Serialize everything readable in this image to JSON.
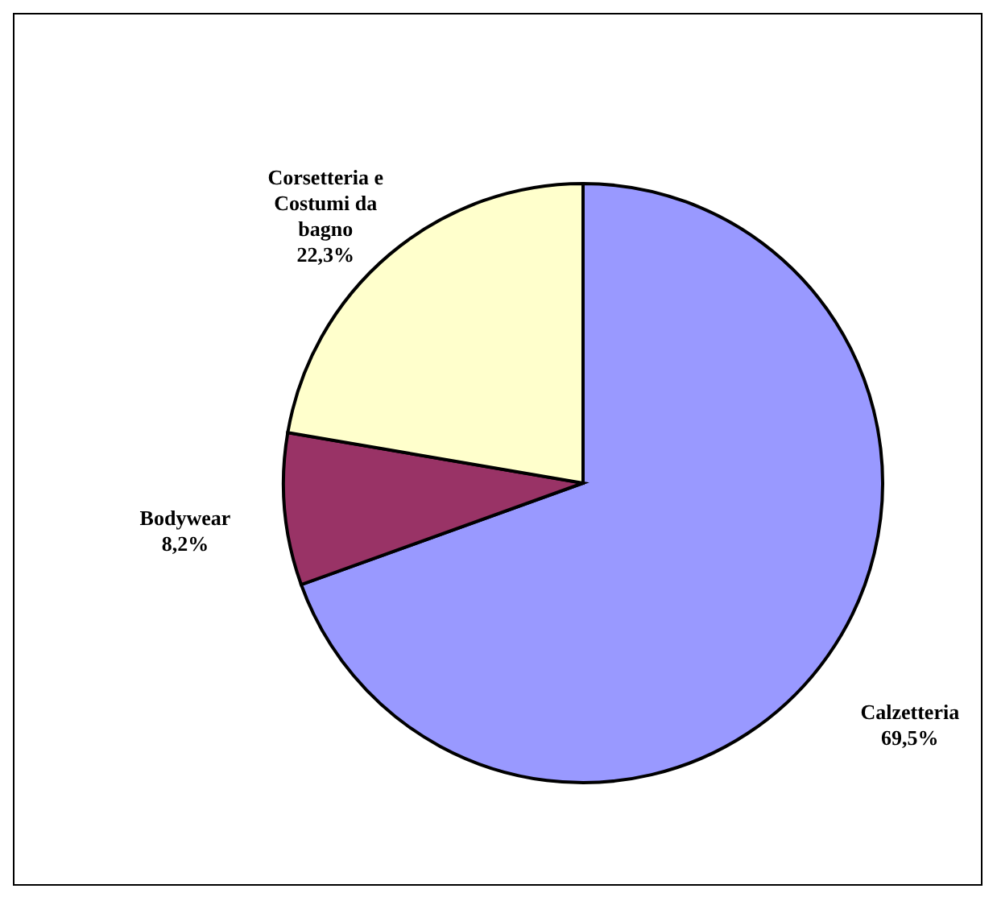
{
  "chart_data": {
    "type": "pie",
    "categories": [
      "Calzetteria",
      "Bodywear",
      "Corsetteria e Costumi da bagno"
    ],
    "values": [
      69.5,
      8.2,
      22.3
    ],
    "colors": [
      "#9999ff",
      "#993366",
      "#ffffcc"
    ],
    "value_labels": [
      "69,5%",
      "8,2%",
      "22,3%"
    ]
  }
}
